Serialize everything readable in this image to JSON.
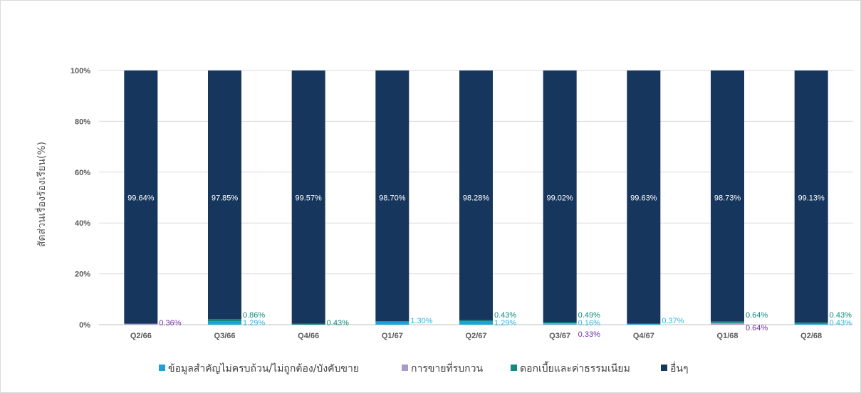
{
  "chart_data": {
    "type": "bar",
    "stacked": true,
    "percent": true,
    "ylabel": "สัดส่วนเรื่องร้องเรียน(%)",
    "ylim": [
      0,
      100
    ],
    "yticks": [
      "0%",
      "20%",
      "40%",
      "60%",
      "80%",
      "100%"
    ],
    "categories": [
      "Q2/66",
      "Q3/66",
      "Q4/66",
      "Q1/67",
      "Q2/67",
      "Q3/67",
      "Q4/67",
      "Q1/68",
      "Q2/68"
    ],
    "grid": true,
    "legend_position": "bottom",
    "series": [
      {
        "name": "ข้อมูลสำคัญไม่ครบถ้วน/ไม่ถูกต้อง/บังคับขาย",
        "color": "#1AA3DB",
        "label_color": "#2FB5E0",
        "values": [
          0.0,
          1.29,
          0.0,
          1.3,
          1.29,
          0.16,
          0.37,
          0.0,
          0.43
        ],
        "labels": [
          "",
          "1.29%",
          "",
          "1.30%",
          "1.29%",
          "0.16%",
          "0.37%",
          "",
          "0.43%"
        ]
      },
      {
        "name": "การขายที่รบกวน",
        "color": "#A99BC7",
        "label_color": "#7030A0",
        "values": [
          0.36,
          0.0,
          0.0,
          0.0,
          0.0,
          0.33,
          0.0,
          0.64,
          0.0
        ],
        "labels": [
          "0.36%",
          "",
          "",
          "",
          "",
          "0.33%",
          "",
          "0.64%",
          ""
        ]
      },
      {
        "name": "ดอกเบี้ยและค่าธรรมเนียม",
        "color": "#0E8A7E",
        "label_color": "#0E8A7E",
        "values": [
          0.0,
          0.86,
          0.43,
          0.0,
          0.43,
          0.49,
          0.0,
          0.64,
          0.43
        ],
        "labels": [
          "",
          "0.86%",
          "0.43%",
          "",
          "0.43%",
          "0.49%",
          "",
          "0.64%",
          "0.43%"
        ]
      },
      {
        "name": "อื่นๆ",
        "color": "#17365D",
        "label_color": "#ffffff",
        "values": [
          99.64,
          97.85,
          99.57,
          98.7,
          98.28,
          99.02,
          99.63,
          98.73,
          99.13
        ],
        "labels": [
          "99.64%",
          "97.85%",
          "99.57%",
          "98.70%",
          "98.28%",
          "99.02%",
          "99.63%",
          "98.73%",
          "99.13%"
        ]
      }
    ]
  }
}
